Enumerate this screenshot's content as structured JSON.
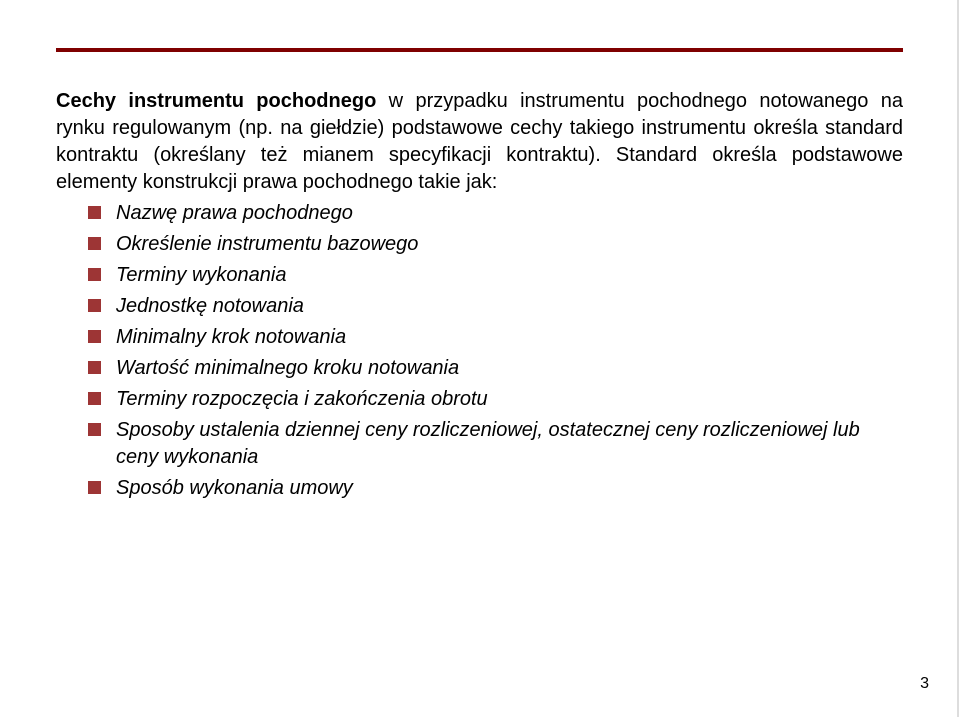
{
  "rule_color": "#7f0000",
  "background_color": "#ffffff",
  "text_color": "#000000",
  "bullet_color": "#9d3535",
  "font_family": "Verdana, Geneva, sans-serif",
  "body_fontsize": 20,
  "page_number": "3",
  "heading_html": "<b>Cechy instrumentu pochodnego</b> w przypadku instrumentu pochodnego notowanego na rynku regulowanym (np. na giełdzie) podstawowe cechy takiego instrumentu określa standard kontraktu (określany też mianem specyfikacji kontraktu). Standard określa podstawowe elementy konstrukcji prawa pochodnego takie jak:",
  "bullets": [
    "Nazwę prawa pochodnego",
    "Określenie instrumentu bazowego",
    "Terminy wykonania",
    "Jednostkę notowania",
    "Minimalny krok notowania",
    "Wartość minimalnego kroku notowania",
    "Terminy rozpoczęcia i zakończenia obrotu",
    "Sposoby ustalenia dziennej ceny rozliczeniowej, ostatecznej ceny rozliczeniowej lub ceny wykonania",
    "Sposób wykonania umowy"
  ]
}
